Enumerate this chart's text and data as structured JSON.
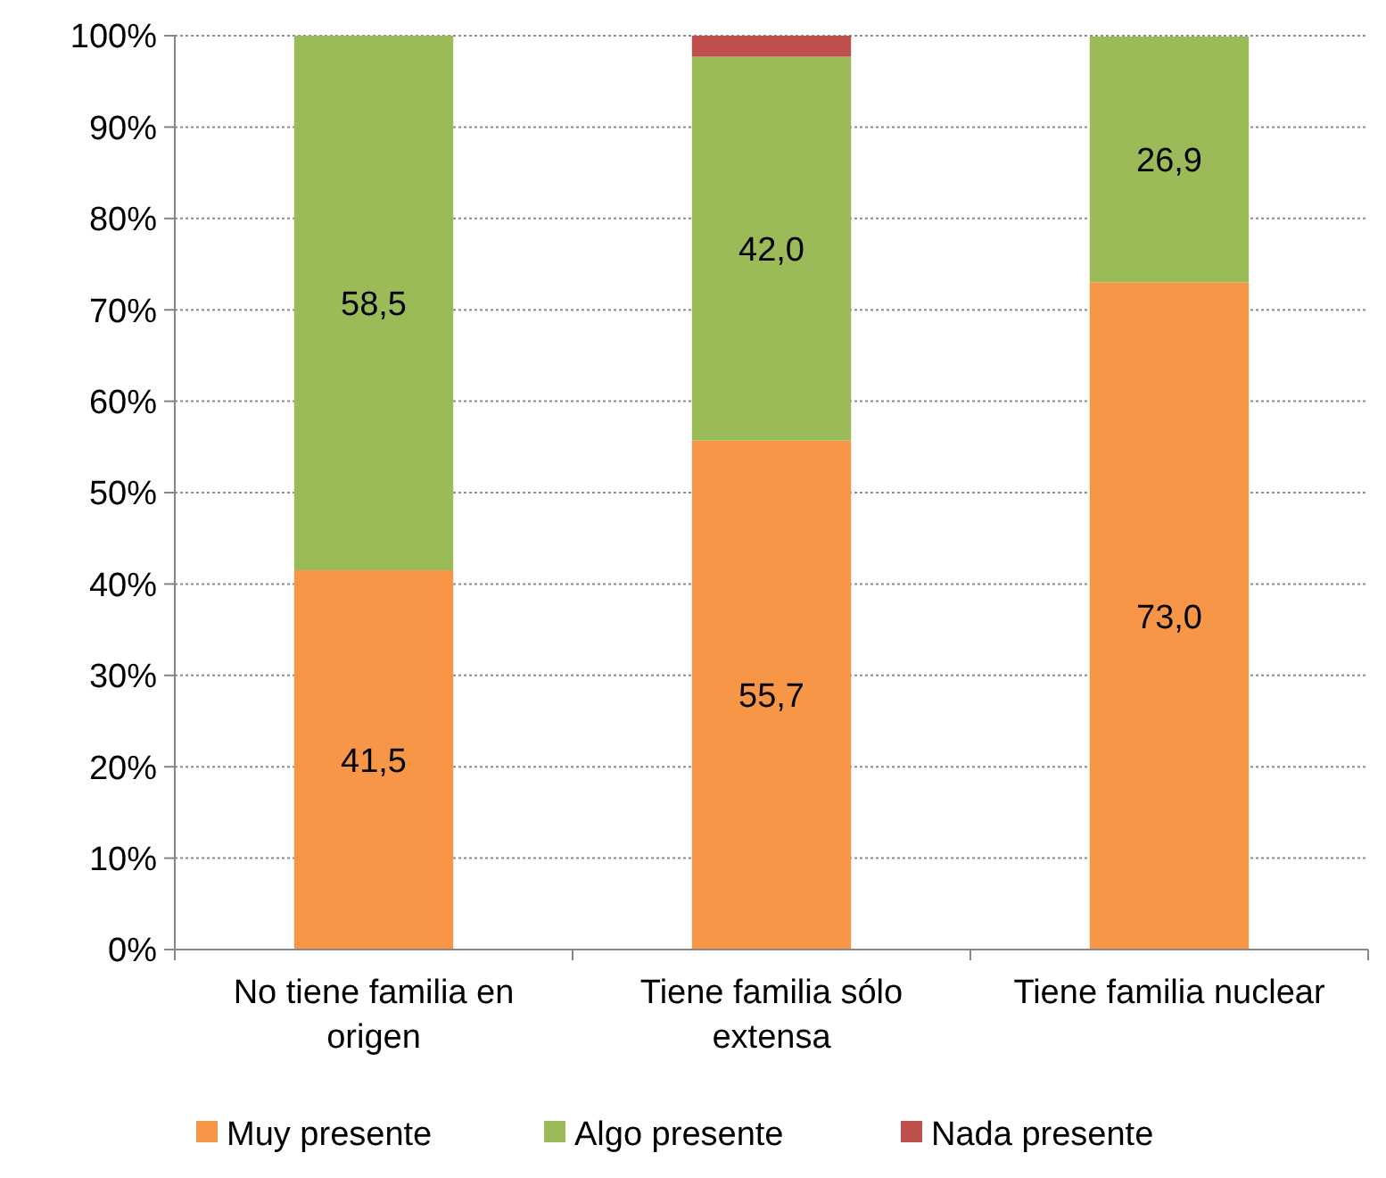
{
  "chart_data": {
    "type": "bar",
    "stacked": true,
    "categories": [
      "No tiene familia en origen",
      "Tiene familia sólo extensa",
      "Tiene familia nuclear"
    ],
    "series": [
      {
        "name": "Muy presente",
        "color": "#f79646",
        "values": [
          41.5,
          55.7,
          73.0
        ],
        "value_labels": [
          "41,5",
          "55,7",
          "73,0"
        ]
      },
      {
        "name": "Algo presente",
        "color": "#9bbb59",
        "values": [
          58.5,
          42.0,
          26.9
        ],
        "value_labels": [
          "58,5",
          "42,0",
          "26,9"
        ]
      },
      {
        "name": "Nada presente",
        "color": "#c0504d",
        "values": [
          null,
          2.3,
          null
        ],
        "value_labels": [
          null,
          null,
          null
        ]
      }
    ],
    "ylim": [
      0,
      100
    ],
    "yticks": [
      {
        "value": 0,
        "label": "0%"
      },
      {
        "value": 10,
        "label": "10%"
      },
      {
        "value": 20,
        "label": "20%"
      },
      {
        "value": 30,
        "label": "30%"
      },
      {
        "value": 40,
        "label": "40%"
      },
      {
        "value": 50,
        "label": "50%"
      },
      {
        "value": 60,
        "label": "60%"
      },
      {
        "value": 70,
        "label": "70%"
      },
      {
        "value": 80,
        "label": "80%"
      },
      {
        "value": 90,
        "label": "90%"
      },
      {
        "value": 100,
        "label": "100%"
      }
    ],
    "grid": "y",
    "legend": "bottom"
  }
}
